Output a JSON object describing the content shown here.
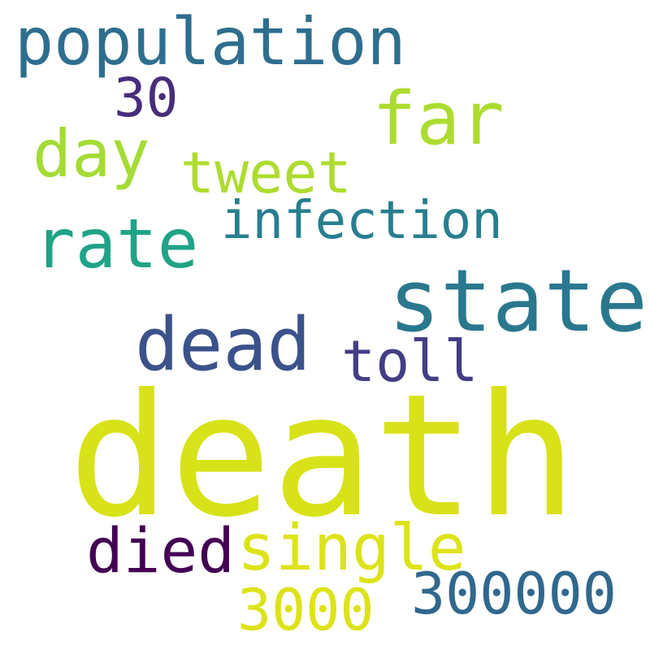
{
  "words": [
    {
      "id": "population",
      "text": "population",
      "color": "#2e6e8e"
    },
    {
      "id": "30",
      "text": "30",
      "color": "#472d7b"
    },
    {
      "id": "far",
      "text": "far",
      "color": "#addc30"
    },
    {
      "id": "day",
      "text": "day",
      "color": "#a5db36"
    },
    {
      "id": "tweet",
      "text": "tweet",
      "color": "#addc30"
    },
    {
      "id": "infection",
      "text": "infection",
      "color": "#277f8e"
    },
    {
      "id": "rate",
      "text": "rate",
      "color": "#20a386"
    },
    {
      "id": "state",
      "text": "state",
      "color": "#2a788e"
    },
    {
      "id": "dead",
      "text": "dead",
      "color": "#3b528b"
    },
    {
      "id": "toll",
      "text": "toll",
      "color": "#433e85"
    },
    {
      "id": "death",
      "text": "death",
      "color": "#d8e219"
    },
    {
      "id": "died",
      "text": "died",
      "color": "#440154"
    },
    {
      "id": "single",
      "text": "single",
      "color": "#dde318"
    },
    {
      "id": "300000",
      "text": "300000",
      "color": "#31688e"
    },
    {
      "id": "3000",
      "text": "3000",
      "color": "#dde318"
    }
  ]
}
